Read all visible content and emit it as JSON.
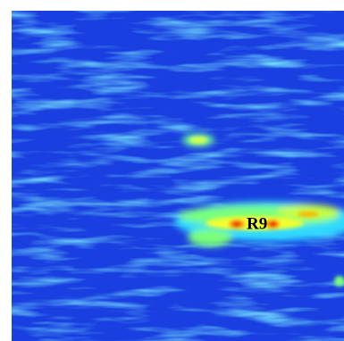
{
  "label": "R9"
}
